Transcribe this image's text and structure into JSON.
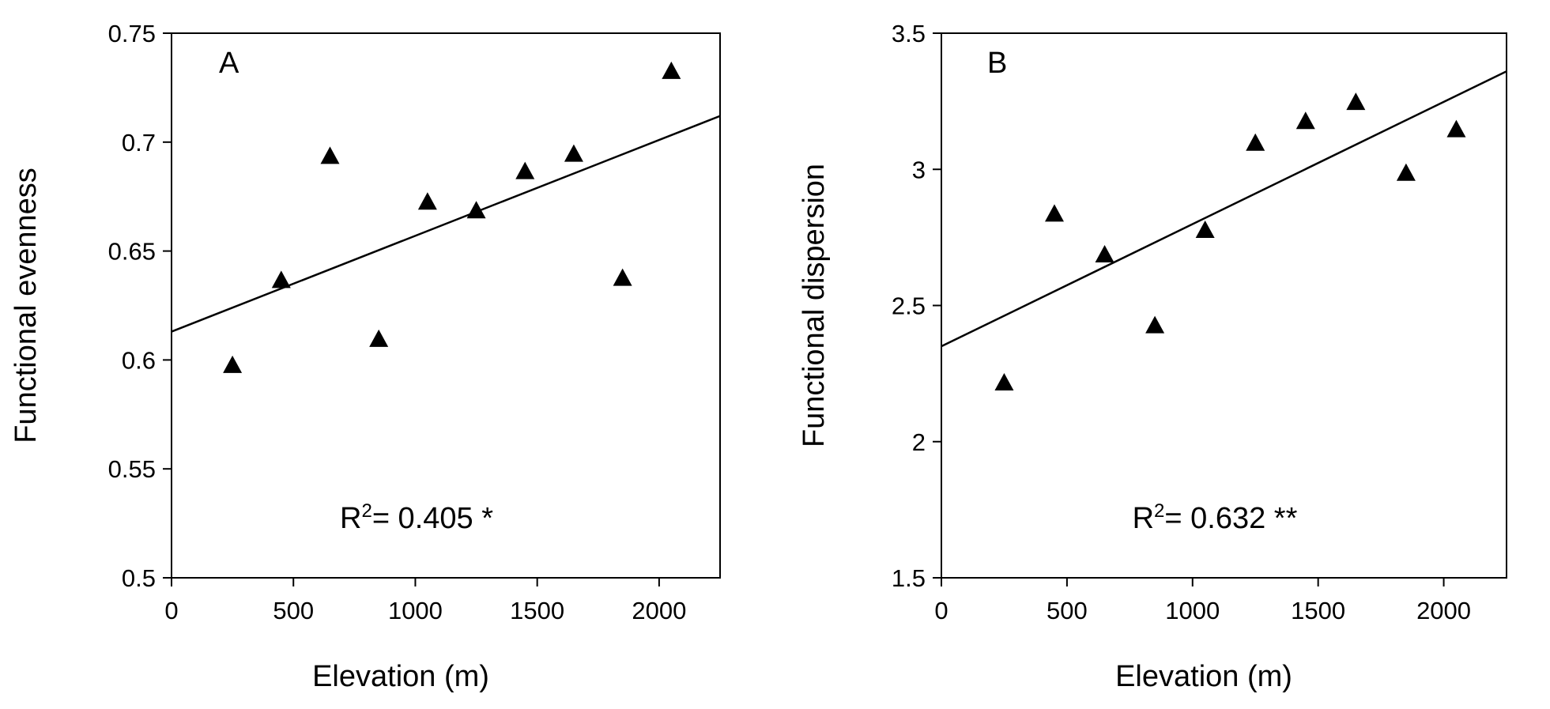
{
  "chart_data": [
    {
      "type": "scatter",
      "panel_label": "A",
      "xlabel": "Elevation (m)",
      "ylabel": "Functional evenness",
      "xlim": [
        0,
        2250
      ],
      "ylim": [
        0.5,
        0.75
      ],
      "xticks": [
        "0",
        "500",
        "1000",
        "1500",
        "2000"
      ],
      "xtick_values": [
        0,
        500,
        1000,
        1500,
        2000
      ],
      "yticks": [
        "0.5",
        "0.55",
        "0.6",
        "0.65",
        "0.7",
        "0.75"
      ],
      "ytick_values": [
        0.5,
        0.55,
        0.6,
        0.65,
        0.7,
        0.75
      ],
      "x": [
        250,
        450,
        650,
        850,
        1050,
        1250,
        1450,
        1650,
        1850,
        2050
      ],
      "y": [
        0.598,
        0.637,
        0.694,
        0.61,
        0.673,
        0.669,
        0.687,
        0.695,
        0.638,
        0.733
      ],
      "trend_line": {
        "x": [
          0,
          2250
        ],
        "y": [
          0.613,
          0.712
        ]
      },
      "annotation": {
        "prefix": "R",
        "superscript": "2",
        "text": "= 0.405 *"
      },
      "marker": "triangle",
      "grid": false
    },
    {
      "type": "scatter",
      "panel_label": "B",
      "xlabel": "Elevation (m)",
      "ylabel": "Functional dispersion",
      "xlim": [
        0,
        2250
      ],
      "ylim": [
        1.5,
        3.5
      ],
      "xticks": [
        "0",
        "500",
        "1000",
        "1500",
        "2000"
      ],
      "xtick_values": [
        0,
        500,
        1000,
        1500,
        2000
      ],
      "yticks": [
        "1.5",
        "2",
        "2.5",
        "3",
        "3.5"
      ],
      "ytick_values": [
        1.5,
        2,
        2.5,
        3,
        3.5
      ],
      "x": [
        250,
        450,
        650,
        850,
        1050,
        1250,
        1450,
        1650,
        1850,
        2050
      ],
      "y": [
        2.22,
        2.84,
        2.69,
        2.43,
        2.78,
        3.1,
        3.18,
        3.25,
        2.99,
        3.15
      ],
      "trend_line": {
        "x": [
          0,
          2250
        ],
        "y": [
          2.35,
          3.36
        ]
      },
      "annotation": {
        "prefix": "R",
        "superscript": "2",
        "text": "= 0.632 **"
      },
      "marker": "triangle",
      "grid": false
    }
  ]
}
